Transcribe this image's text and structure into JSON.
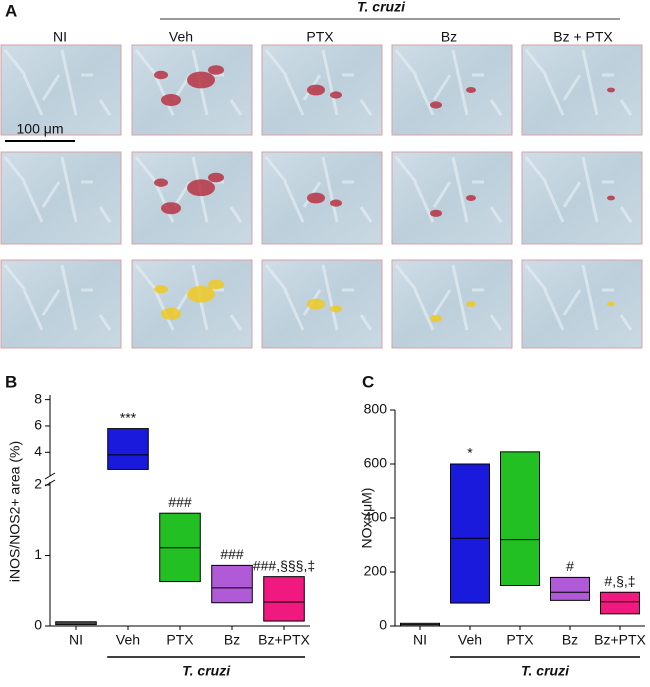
{
  "panel_a": {
    "letter": "A",
    "group_label": "T. cruzi",
    "columns": [
      "NI",
      "Veh",
      "PTX",
      "Bz",
      "Bz + PTX"
    ],
    "scale_bar": "100 μm"
  },
  "chart_data": [
    {
      "type": "box",
      "panel": "B",
      "y_label": "iNOS/NOS2+ area (%)",
      "categories": [
        "NI",
        "Veh",
        "PTX",
        "Bz",
        "Bz+PTX"
      ],
      "low": [
        0.02,
        2.7,
        0.63,
        0.33,
        0.07
      ],
      "median": [
        0.04,
        3.8,
        1.11,
        0.54,
        0.34
      ],
      "high": [
        0.06,
        5.8,
        1.6,
        0.86,
        0.7
      ],
      "colors": [
        "#b0b0b0",
        "#1a1adc",
        "#22c022",
        "#b05ad8",
        "#f0197f"
      ],
      "annotations": [
        null,
        "***",
        "###",
        "###",
        "###,§§§,‡"
      ],
      "group_label": "T. cruzi",
      "ylim": [
        0,
        2
      ],
      "yticks": [
        0,
        1,
        2
      ],
      "ylim_upper": [
        2.2,
        8.2
      ],
      "yticks_upper": [
        4,
        6,
        8
      ]
    },
    {
      "type": "box",
      "panel": "C",
      "y_label": "NOx (μM)",
      "categories": [
        "NI",
        "Veh",
        "PTX",
        "Bz",
        "Bz+PTX"
      ],
      "low": [
        0,
        85,
        150,
        95,
        45
      ],
      "median": [
        5,
        325,
        320,
        125,
        90
      ],
      "high": [
        10,
        600,
        645,
        180,
        125
      ],
      "colors": [
        "#b0b0b0",
        "#1a1adc",
        "#22c022",
        "#b05ad8",
        "#f0197f"
      ],
      "annotations": [
        null,
        "*",
        null,
        "#",
        "#,§,‡"
      ],
      "group_label": "T. cruzi",
      "ylim": [
        0,
        800
      ],
      "yticks": [
        0,
        200,
        400,
        600,
        800
      ]
    }
  ]
}
